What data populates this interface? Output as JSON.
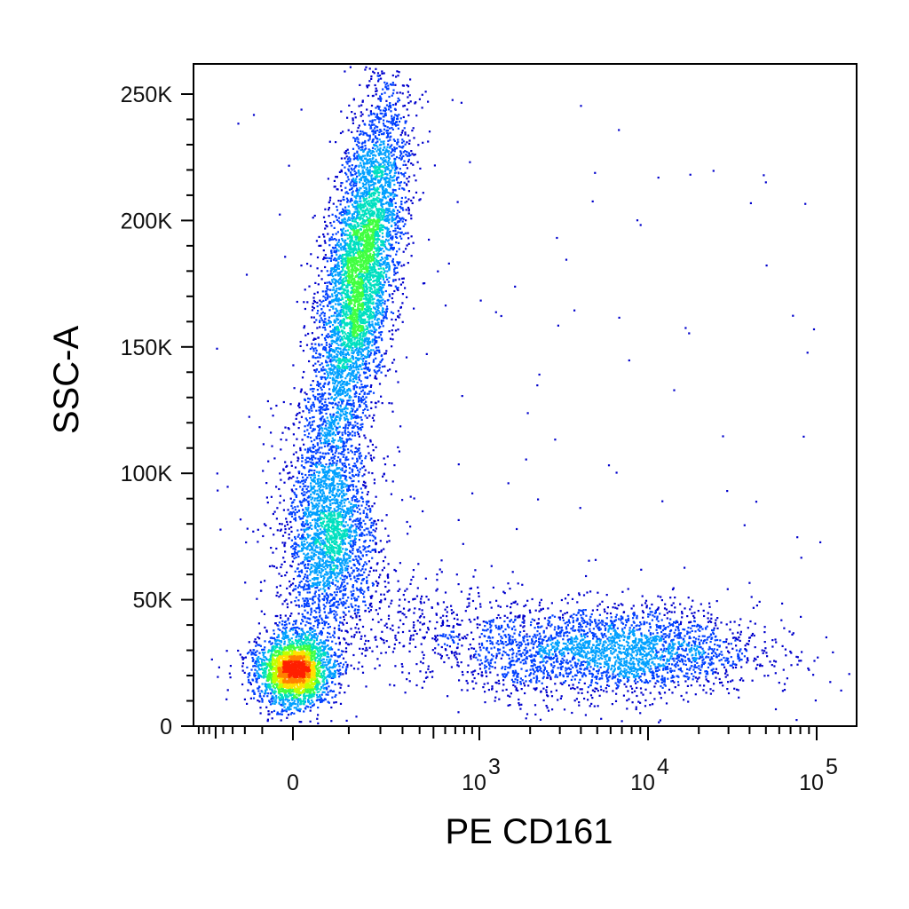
{
  "chart_data": {
    "type": "scatter",
    "title": "",
    "xlabel": "PE  CD161",
    "ylabel": "SSC-A",
    "x_scale": "biexponential",
    "y_scale": "linear",
    "xlim": [
      -100,
      200000
    ],
    "ylim": [
      0,
      262144
    ],
    "grid": false,
    "legend": "none",
    "y_ticks": [
      {
        "value": 0,
        "label": "0"
      },
      {
        "value": 50000,
        "label": "50K"
      },
      {
        "value": 100000,
        "label": "100K"
      },
      {
        "value": 150000,
        "label": "150K"
      },
      {
        "value": 200000,
        "label": "200K"
      },
      {
        "value": 250000,
        "label": "250K"
      }
    ],
    "x_ticks": [
      {
        "value": 0,
        "label": "0",
        "base": "0",
        "exp": ""
      },
      {
        "value": 1000,
        "label": "10^3",
        "base": "10",
        "exp": "3"
      },
      {
        "value": 10000,
        "label": "10^4",
        "base": "10",
        "exp": "4"
      },
      {
        "value": 100000,
        "label": "10^5",
        "base": "10",
        "exp": "5"
      }
    ],
    "density_colors": [
      "#0000cc",
      "#0040ff",
      "#00a0ff",
      "#00e0c0",
      "#40ff40",
      "#c0ff00",
      "#ffe000",
      "#ff8000",
      "#ff2000"
    ],
    "populations": [
      {
        "name": "",
        "center_x": 60,
        "center_y": 22000,
        "spread_x": 35,
        "spread_y": 7000,
        "count": 2600
      },
      {
        "name": "",
        "center_x": 150,
        "center_y": 75000,
        "spread_x": 55,
        "spread_y": 18000,
        "count": 1800
      },
      {
        "name": "",
        "center_x": 230,
        "center_y": 180000,
        "spread_x": 60,
        "spread_y": 35000,
        "count": 5200
      },
      {
        "name": "",
        "center_x": 7000,
        "center_y": 30000,
        "spread_x": 9000,
        "spread_y": 9000,
        "count": 2600
      }
    ]
  }
}
